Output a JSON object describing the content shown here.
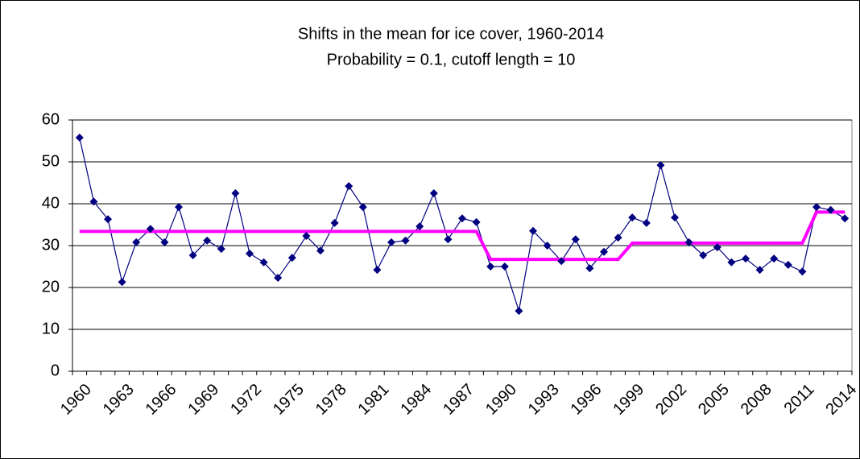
{
  "chart_data": {
    "type": "line",
    "title": "Shifts in the mean for ice cover, 1960-2014",
    "subtitle": "Probability = 0.1, cutoff length = 10",
    "categories": [
      "1960",
      null,
      null,
      "1963",
      null,
      null,
      "1966",
      null,
      null,
      "1969",
      null,
      null,
      "1972",
      null,
      null,
      "1975",
      null,
      null,
      "1978",
      null,
      null,
      "1981",
      null,
      null,
      "1984",
      null,
      null,
      "1987",
      null,
      null,
      "1990",
      null,
      null,
      "1993",
      null,
      null,
      "1996",
      null,
      null,
      "1999",
      null,
      null,
      "2002",
      null,
      null,
      "2005",
      null,
      null,
      "2008",
      null,
      null,
      "2011",
      null,
      null,
      "2014"
    ],
    "series": [
      {
        "color": "#000080",
        "marker": "diamond",
        "values": [
          55.8,
          40.5,
          36.3,
          21.3,
          30.8,
          34.0,
          30.8,
          39.2,
          27.7,
          31.2,
          29.2,
          42.5,
          28.1,
          26.0,
          22.3,
          27.1,
          32.3,
          28.8,
          35.4,
          44.2,
          39.2,
          24.2,
          30.8,
          31.2,
          34.6,
          42.5,
          31.5,
          36.5,
          35.6,
          25.0,
          25.0,
          14.4,
          33.5,
          30.0,
          26.3,
          31.5,
          24.6,
          28.5,
          31.9,
          36.7,
          35.4,
          49.2,
          36.7,
          30.8,
          27.7,
          29.6,
          26.0,
          26.9,
          24.2,
          26.9,
          25.4,
          23.8,
          39.2,
          38.5,
          36.5
        ]
      },
      {
        "color": "#ff00ff",
        "values": [
          33.4,
          33.4,
          33.4,
          33.4,
          33.4,
          33.4,
          33.4,
          33.4,
          33.4,
          33.4,
          33.4,
          33.4,
          33.4,
          33.4,
          33.4,
          33.4,
          33.4,
          33.4,
          33.4,
          33.4,
          33.4,
          33.4,
          33.4,
          33.4,
          33.4,
          33.4,
          33.4,
          33.4,
          33.4,
          26.7,
          26.7,
          26.7,
          26.7,
          26.7,
          26.7,
          26.7,
          26.7,
          26.7,
          26.7,
          30.6,
          30.6,
          30.6,
          30.6,
          30.6,
          30.6,
          30.6,
          30.6,
          30.6,
          30.6,
          30.6,
          30.6,
          30.6,
          38.0,
          38.0,
          38.0
        ]
      }
    ],
    "ylim": [
      0,
      60
    ],
    "yticks": [
      0,
      10,
      20,
      30,
      40,
      50,
      60
    ],
    "grid": true
  }
}
